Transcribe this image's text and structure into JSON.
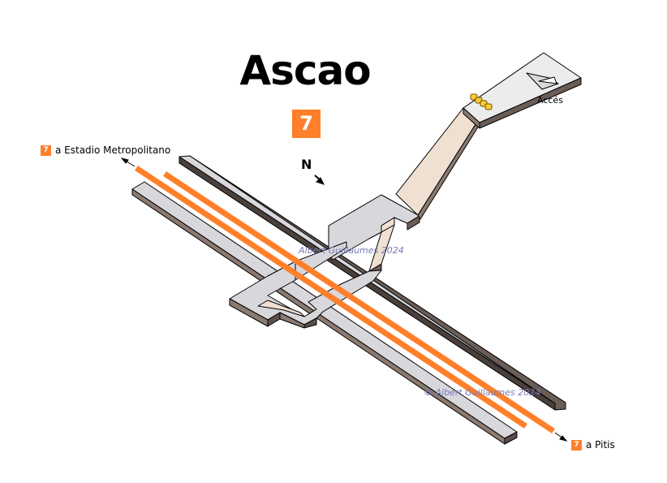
{
  "station": {
    "name": "Ascao",
    "line": "7"
  },
  "line_color": "#ff7f2a",
  "directions": [
    {
      "line": "7",
      "label": "a Estadio Metropolitano"
    },
    {
      "line": "7",
      "label": "a Pitis"
    }
  ],
  "compass": {
    "label": "N"
  },
  "access": {
    "label": "Accés"
  },
  "watermarks": [
    "Albert Guillaumes 2024",
    "© Albert Guillaumes 2024"
  ]
}
